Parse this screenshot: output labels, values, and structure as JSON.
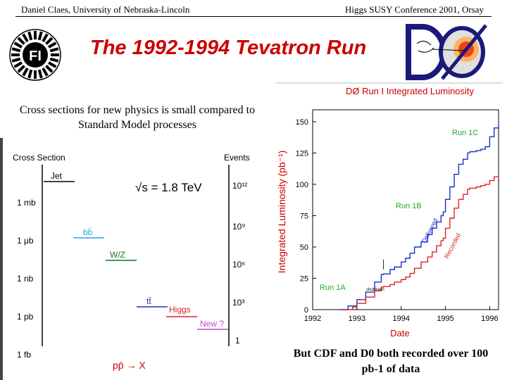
{
  "header": {
    "left": "Daniel Claes, University of Nebraska-Lincoln",
    "right": "Higgs SUSY Conference 2001, Orsay"
  },
  "logos": {
    "fermilab": "fermilab-logo",
    "d0": "d0-logo"
  },
  "title": "The 1992-1994 Tevatron Run",
  "subtitle": "Cross sections for new physics is small compared to Standard Model processes",
  "cross_section_figure": {
    "left_axis_title": "Cross Section",
    "right_axis_title": "Events",
    "energy_label": "√s = 1.8 TeV",
    "left_ticks": [
      "1 mb",
      "1 μb",
      "1 nb",
      "1 pb",
      "1 fb"
    ],
    "right_ticks": [
      "10¹²",
      "10⁹",
      "10⁶",
      "10³",
      "1"
    ],
    "processes": [
      {
        "name": "Jet",
        "color": "#000000"
      },
      {
        "name": "bb̄",
        "color": "#22aadd"
      },
      {
        "name": "W/Z",
        "color": "#117722"
      },
      {
        "name": "tt̄",
        "color": "#2233aa"
      },
      {
        "name": "Higgs",
        "color": "#dd2222"
      },
      {
        "name": "New ?",
        "color": "#cc44cc"
      }
    ],
    "bottom_label": "pp̄ → X"
  },
  "bottom_note": "But CDF and D0 both recorded over 100 pb-1 of data",
  "chart_data": {
    "type": "line",
    "title": "DØ Run I Integrated Luminosity",
    "xlabel": "Date",
    "ylabel": "Integrated Luminosity (pb⁻¹)",
    "x_ticks": [
      "1992",
      "1993",
      "1994",
      "1995",
      "1996"
    ],
    "y_ticks": [
      0,
      25,
      50,
      75,
      100,
      125,
      150
    ],
    "xlim": [
      1992,
      1996.2
    ],
    "ylim": [
      0,
      155
    ],
    "series": [
      {
        "name": "Delivered",
        "color": "#1a2fcc",
        "x": [
          1992.6,
          1992.8,
          1993.0,
          1993.2,
          1993.4,
          1993.55,
          1993.6,
          1993.75,
          1993.85,
          1994.0,
          1994.1,
          1994.2,
          1994.3,
          1994.45,
          1994.6,
          1994.7,
          1994.8,
          1994.9,
          1994.95,
          1995.0,
          1995.1,
          1995.2,
          1995.3,
          1995.4,
          1995.5,
          1995.55,
          1995.6,
          1995.7,
          1995.8,
          1995.9,
          1996.0,
          1996.1,
          1996.2
        ],
        "y": [
          0,
          3,
          8,
          14,
          22,
          28,
          28.5,
          32,
          34,
          38,
          41,
          45,
          50,
          54,
          60,
          65,
          70,
          75,
          78,
          88,
          98,
          108,
          116,
          120,
          125,
          126,
          126,
          127,
          128,
          130,
          138,
          145,
          148
        ]
      },
      {
        "name": "Recorded",
        "color": "#dd2222",
        "x": [
          1992.7,
          1992.9,
          1993.0,
          1993.2,
          1993.4,
          1993.55,
          1993.6,
          1993.75,
          1993.85,
          1994.0,
          1994.1,
          1994.2,
          1994.3,
          1994.45,
          1994.6,
          1994.7,
          1994.8,
          1994.9,
          1994.95,
          1995.0,
          1995.1,
          1995.2,
          1995.3,
          1995.4,
          1995.5,
          1995.55,
          1995.6,
          1995.7,
          1995.8,
          1995.9,
          1996.0,
          1996.1,
          1996.2
        ],
        "y": [
          0,
          2,
          5,
          10,
          15,
          18,
          18.5,
          20,
          22,
          24,
          26,
          29,
          33,
          38,
          42,
          46,
          51,
          55,
          57,
          65,
          73,
          81,
          88,
          92,
          96,
          97,
          97,
          98,
          99,
          100,
          103,
          106,
          108
        ]
      }
    ],
    "annotations": [
      "Run 1A",
      "Run 1B",
      "Run 1C",
      "Delivered",
      "Recorded",
      "shutdown"
    ]
  }
}
